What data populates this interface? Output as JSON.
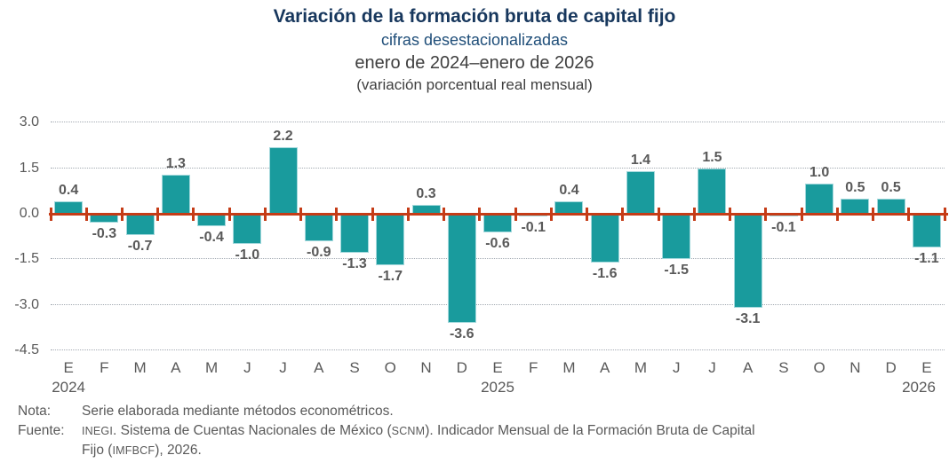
{
  "header": {
    "title": "Variación de la formación bruta de capital fijo",
    "subtitle": "cifras desestacionalizadas",
    "period": "enero de 2024–enero de 2026",
    "unit_note": "(variación porcentual real mensual)"
  },
  "chart_data": {
    "type": "bar",
    "title": "Variación de la formación bruta de capital fijo",
    "subtitle": "cifras desestacionalizadas (variación porcentual real mensual)",
    "xlabel": "",
    "ylabel": "",
    "categories": [
      "E",
      "F",
      "M",
      "A",
      "M",
      "J",
      "J",
      "A",
      "S",
      "O",
      "N",
      "D",
      "E",
      "F",
      "M",
      "A",
      "M",
      "J",
      "J",
      "A",
      "S",
      "O",
      "N",
      "D",
      "E"
    ],
    "year_labels": [
      {
        "index": 0,
        "label": "2024"
      },
      {
        "index": 12,
        "label": "2025"
      },
      {
        "index": 24,
        "label": "2026"
      }
    ],
    "values": [
      0.4,
      -0.3,
      -0.7,
      1.3,
      -0.4,
      -1.0,
      2.2,
      -0.9,
      -1.3,
      -1.7,
      0.3,
      -3.6,
      -0.6,
      -0.1,
      0.4,
      -1.6,
      1.4,
      -1.5,
      1.5,
      -3.1,
      -0.1,
      1.0,
      0.5,
      0.5,
      -1.1
    ],
    "y_tick_labels": [
      "3.0",
      "1.5",
      "0.0",
      "-1.5",
      "-3.0",
      "-4.5"
    ],
    "ylim": [
      -4.5,
      3.0
    ],
    "grid": "horizontal dotted",
    "legend": "none",
    "colors": {
      "bar": "#199B9D",
      "bar_edge": "#a3d8dc",
      "zero_line": "#C53C17",
      "grid": "#a3aab2",
      "text_gray": "#595959",
      "title_navy": "#17375D",
      "subtitle_blue": "#1F4E79"
    }
  },
  "footer": {
    "nota_label": "Nota:",
    "nota_text": "Serie elaborada mediante métodos econométricos.",
    "fuente_label": "Fuente:",
    "fuente_segments": [
      {
        "text": "INEGI",
        "small": true
      },
      {
        "text": ". Sistema de Cuentas Nacionales de México (",
        "small": false
      },
      {
        "text": "SCNM",
        "small": true
      },
      {
        "text": "). Indicador Mensual de la Formación Bruta de Capital",
        "small": false
      },
      {
        "br": true
      },
      {
        "text": "Fijo (",
        "small": false
      },
      {
        "text": "IMFBCF",
        "small": true
      },
      {
        "text": "), 2026.",
        "small": false
      }
    ]
  }
}
